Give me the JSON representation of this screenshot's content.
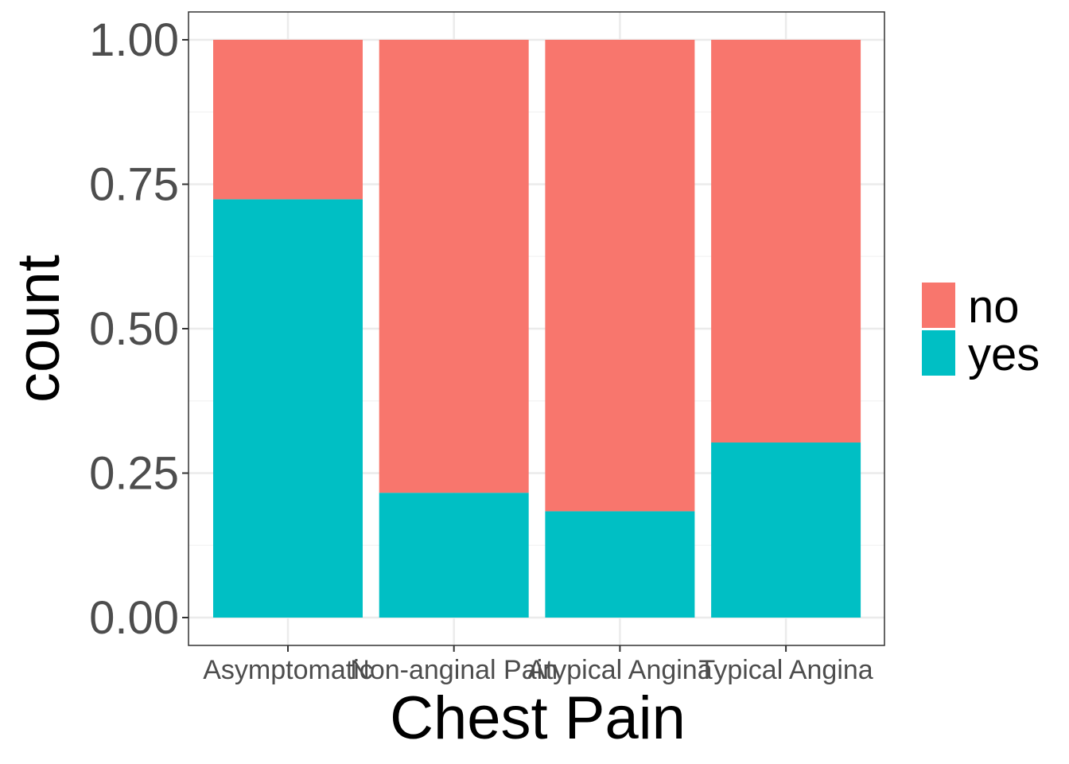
{
  "chart_data": {
    "type": "bar",
    "stacked": true,
    "position": "fill",
    "title": "",
    "xlabel": "Chest Pain",
    "ylabel": "count",
    "ylim": [
      0,
      1
    ],
    "yticks": [
      "0.00",
      "0.25",
      "0.50",
      "0.75",
      "1.00"
    ],
    "grid": true,
    "legend_position": "right",
    "categories": [
      "Asymptomatic",
      "Non-anginal Pain",
      "Atypical Angina",
      "Typical Angina"
    ],
    "series": [
      {
        "name": "no",
        "color": "#F8766D",
        "values": [
          0.276,
          0.784,
          0.816,
          0.697
        ]
      },
      {
        "name": "yes",
        "color": "#00BFC4",
        "values": [
          0.724,
          0.216,
          0.184,
          0.303
        ]
      }
    ]
  },
  "legend": {
    "items": [
      {
        "label": "no",
        "color": "#F8766D"
      },
      {
        "label": "yes",
        "color": "#00BFC4"
      }
    ]
  },
  "colors": {
    "panel_border": "#333333",
    "grid_major": "#ebebeb",
    "grid_minor": "#f5f5f5",
    "tick_text": "#4d4d4d"
  }
}
